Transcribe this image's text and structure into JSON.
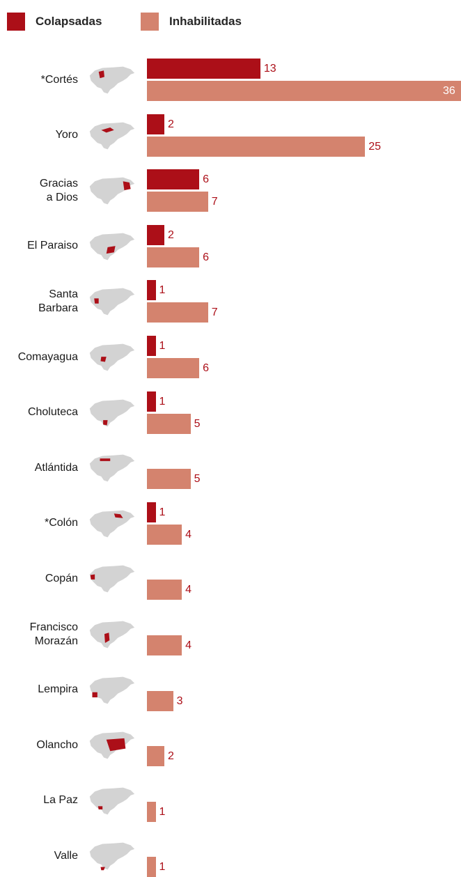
{
  "colors": {
    "colapsadas": "#ac0f18",
    "inhabilitadas": "#d4836e",
    "map_gray": "#d3d3d3"
  },
  "icon": "honduras-map-icon",
  "chart_data": {
    "type": "bar",
    "orientation": "horizontal",
    "title": "",
    "xlabel": "",
    "ylabel": "",
    "legend_position": "top-left",
    "grid": false,
    "categories": [
      "*Cortés",
      "Yoro",
      "Gracias\na Dios",
      "El Paraiso",
      "Santa\nBarbara",
      "Comayagua",
      "Choluteca",
      "Atlántida",
      "*Colón",
      "Copán",
      "Francisco\nMorazán",
      "Lempira",
      "Olancho",
      "La Paz",
      "Valle"
    ],
    "series": [
      {
        "name": "Colapsadas",
        "values": [
          13,
          2,
          6,
          2,
          1,
          1,
          1,
          null,
          1,
          null,
          null,
          null,
          null,
          null,
          null
        ]
      },
      {
        "name": "Inhabilitadas",
        "values": [
          36,
          25,
          7,
          6,
          7,
          6,
          5,
          5,
          4,
          4,
          4,
          3,
          2,
          1,
          1
        ]
      }
    ],
    "xlim": [
      0,
      36
    ]
  }
}
